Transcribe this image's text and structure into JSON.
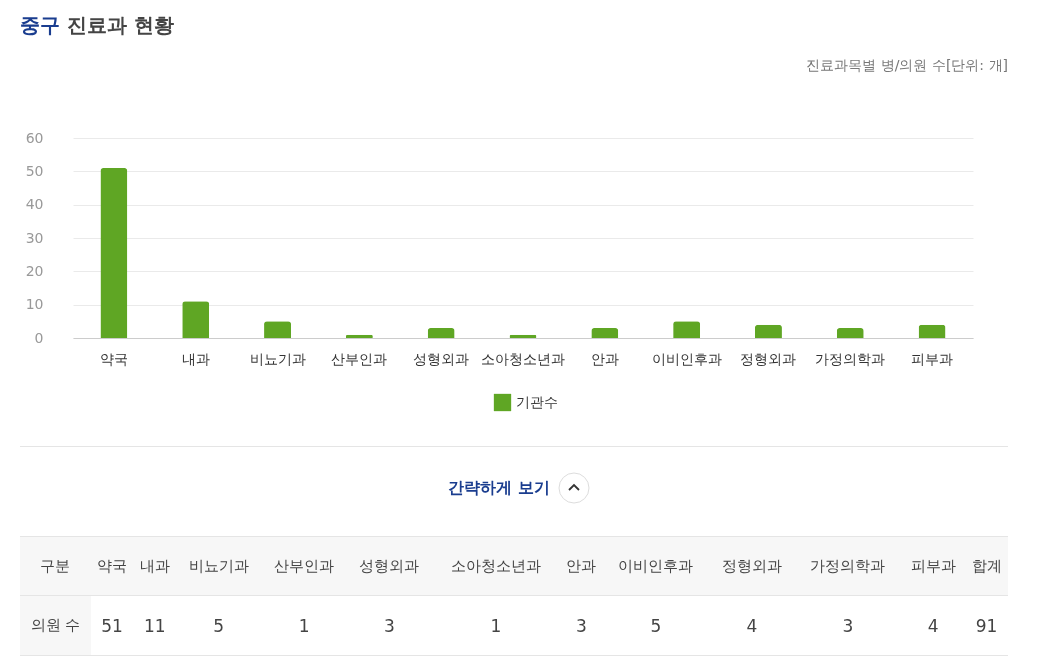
{
  "chart_data": [
    {
      "type": "bar",
      "title": "중구 진료과 현황",
      "subtitle": "진료과목별 병/의원 수[단위: 개]",
      "categories": [
        "약국",
        "내과",
        "비뇨기과",
        "산부인과",
        "성형외과",
        "소아청소년과",
        "안과",
        "이비인후과",
        "정형외과",
        "가정의학과",
        "피부과"
      ],
      "series": [
        {
          "name": "기관수",
          "color": "#5fa624",
          "values": [
            51,
            11,
            5,
            1,
            3,
            1,
            3,
            5,
            4,
            3,
            4
          ]
        }
      ],
      "ylim": [
        0,
        60
      ],
      "yticks": [
        0,
        10,
        20,
        30,
        40,
        50,
        60
      ],
      "grid": "y",
      "legend": "bottom",
      "annotations": [
        "간략하게 보기"
      ]
    },
    {
      "type": "other",
      "categories": [
        "약국",
        "내과",
        "비뇨기과",
        "산부인과",
        "성형외과",
        "소아청소년과",
        "안과",
        "이비인후과",
        "정형외과",
        "가정의학과",
        "피부과"
      ],
      "annotations": [
        "구분",
        "의원 수",
        "합계",
        "51",
        "11",
        "5",
        "1",
        "3",
        "1",
        "3",
        "5",
        "4",
        "3",
        "4",
        "91"
      ]
    }
  ]
}
